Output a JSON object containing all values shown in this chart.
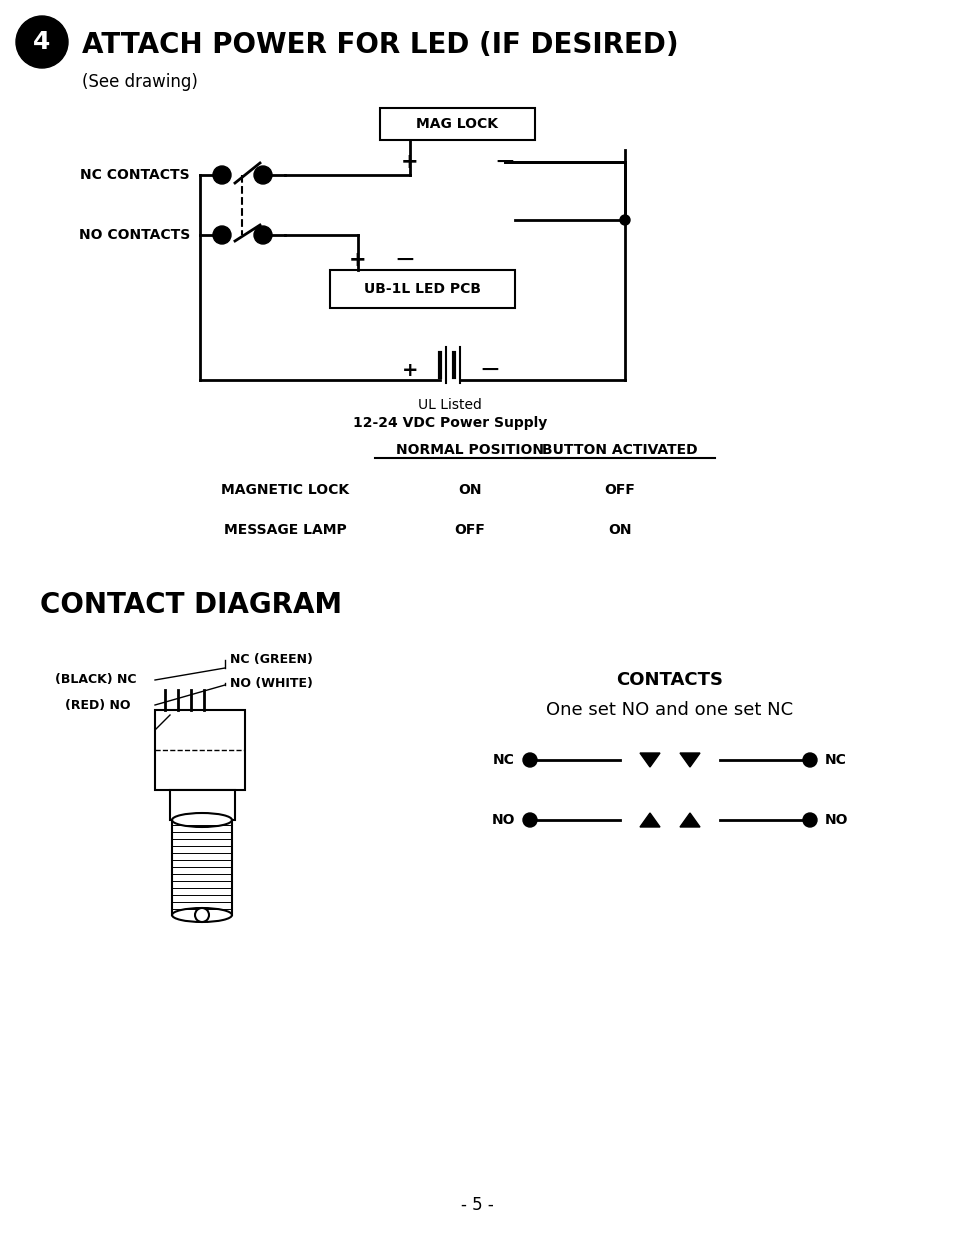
{
  "title_number": "4",
  "title_text": "ATTACH POWER FOR LED (IF DESIRED)",
  "subtitle": "(See drawing)",
  "section2_title": "CONTACT DIAGRAM",
  "contacts_title": "CONTACTS",
  "contacts_subtitle": "One set NO and one set NC",
  "page_number": "- 5 -",
  "bg_color": "#ffffff",
  "text_color": "#000000",
  "table_headers": [
    "NORMAL POSITION",
    "BUTTON ACTIVATED"
  ],
  "table_rows": [
    [
      "MAGNETIC LOCK",
      "ON",
      "OFF"
    ],
    [
      "MESSAGE LAMP",
      "OFF",
      "ON"
    ]
  ]
}
